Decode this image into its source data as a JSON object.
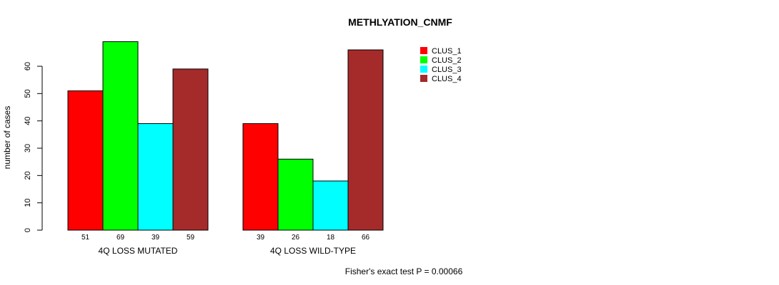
{
  "chart_data": {
    "type": "bar",
    "title": "METHLYATION_CNMF",
    "ylabel": "number of cases",
    "xlabel": "",
    "ylim": [
      0,
      70
    ],
    "yticks": [
      0,
      10,
      20,
      30,
      40,
      50,
      60
    ],
    "categories": [
      "4Q LOSS MUTATED",
      "4Q LOSS WILD-TYPE"
    ],
    "series": [
      {
        "name": "CLUS_1",
        "color": "#ff0000",
        "values": [
          51,
          39
        ]
      },
      {
        "name": "CLUS_2",
        "color": "#00ff00",
        "values": [
          69,
          26
        ]
      },
      {
        "name": "CLUS_3",
        "color": "#00ffff",
        "values": [
          39,
          18
        ]
      },
      {
        "name": "CLUS_4",
        "color": "#a52a2a",
        "values": [
          59,
          66
        ]
      }
    ],
    "legend_position": "top-right",
    "footnote": "Fisher's exact test P = 0.00066",
    "grid": false
  }
}
